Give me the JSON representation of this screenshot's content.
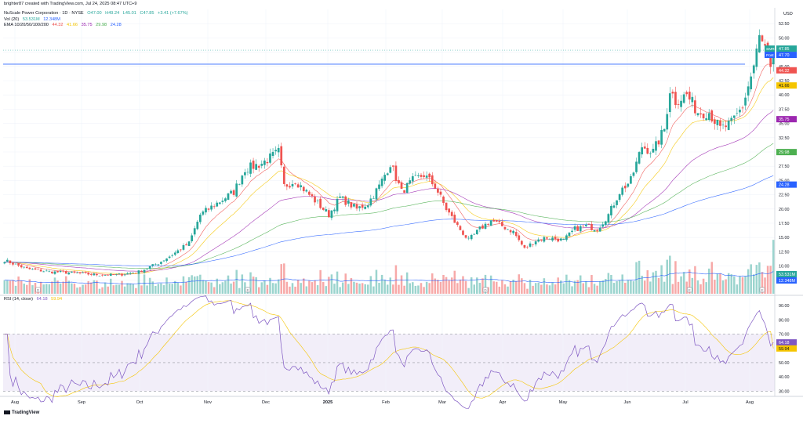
{
  "header": {
    "credit": "brighter87 created with TradingView.com, Jul 24, 2025 08:47 UTC+9",
    "symbol_line": "NuScale Power Corporation · 1D · NYSE",
    "ohlc": [
      "O47.00",
      "H49.24",
      "L45.01",
      "C47.85",
      "+3.41 (+7.67%)"
    ],
    "vol_label": "Vol (20)",
    "vol_values": [
      "53.531M",
      "12.348M"
    ],
    "ema_label": "EMA 10/20/50/100/200",
    "ema_values": [
      "44.32",
      "41.66",
      "35.75",
      "29.98",
      "24.28"
    ]
  },
  "currency": "USD",
  "brand": "TradingView",
  "rsi_header": {
    "label": "RSI (14, close)",
    "values": [
      "64.18",
      "59.94"
    ]
  },
  "colors": {
    "up": "#26a69a",
    "down": "#ef5350",
    "ema10": "#ef5350",
    "ema20": "#f5c500",
    "ema50": "#9c27b0",
    "ema100": "#4caf50",
    "ema200": "#2962ff",
    "rsi": "#7e57c2",
    "rsi_ma": "#f5c500"
  },
  "chart_data": {
    "type": "candlestick",
    "symbol": "SMR",
    "interval": "1D",
    "y_range": [
      5,
      55
    ],
    "price_ticks": [
      7.5,
      10,
      12.5,
      15,
      17.5,
      20,
      22.5,
      25,
      27.5,
      30,
      32.5,
      35,
      37.5,
      40,
      42.5,
      45,
      47.5,
      50,
      52.5
    ],
    "x_labels": [
      "Aug",
      "Sep",
      "Oct",
      "Nov",
      "Dec",
      "2025",
      "Feb",
      "Mar",
      "Apr",
      "May",
      "Jun",
      "Jul",
      "Aug"
    ],
    "close_anchors": [
      [
        0,
        11
      ],
      [
        8,
        9.5
      ],
      [
        16,
        9
      ],
      [
        24,
        8.8
      ],
      [
        32,
        8.5
      ],
      [
        40,
        8.4
      ],
      [
        48,
        9
      ],
      [
        55,
        10.5
      ],
      [
        60,
        12
      ],
      [
        66,
        14
      ],
      [
        70,
        19
      ],
      [
        76,
        21
      ],
      [
        82,
        23
      ],
      [
        86,
        27
      ],
      [
        92,
        28
      ],
      [
        98,
        30
      ],
      [
        100,
        24
      ],
      [
        104,
        25
      ],
      [
        108,
        23
      ],
      [
        112,
        21
      ],
      [
        116,
        19
      ],
      [
        120,
        22
      ],
      [
        126,
        20
      ],
      [
        130,
        21
      ],
      [
        134,
        24
      ],
      [
        138,
        28
      ],
      [
        142,
        23
      ],
      [
        146,
        25
      ],
      [
        150,
        26
      ],
      [
        154,
        24
      ],
      [
        158,
        20
      ],
      [
        162,
        17
      ],
      [
        166,
        14.5
      ],
      [
        170,
        16.5
      ],
      [
        174,
        18
      ],
      [
        178,
        17
      ],
      [
        182,
        16
      ],
      [
        186,
        13
      ],
      [
        190,
        14.5
      ],
      [
        194,
        15
      ],
      [
        200,
        14.5
      ],
      [
        204,
        16.5
      ],
      [
        208,
        17
      ],
      [
        212,
        16.5
      ],
      [
        216,
        19
      ],
      [
        220,
        23
      ],
      [
        224,
        25
      ],
      [
        228,
        31
      ],
      [
        232,
        30
      ],
      [
        236,
        34
      ],
      [
        238,
        41
      ],
      [
        240,
        39
      ],
      [
        244,
        40
      ],
      [
        248,
        37
      ],
      [
        252,
        37
      ],
      [
        256,
        34
      ],
      [
        260,
        35
      ],
      [
        264,
        38
      ],
      [
        268,
        45
      ],
      [
        270,
        50
      ],
      [
        272,
        48
      ],
      [
        274,
        44
      ],
      [
        275,
        47.85
      ]
    ],
    "markers": [
      {
        "x": 12,
        "label": "D"
      },
      {
        "x": 87,
        "label": "E"
      },
      {
        "x": 172,
        "label": "D"
      },
      {
        "x": 245,
        "label": "E"
      },
      {
        "x": 289,
        "label": "E"
      }
    ],
    "horizontal_line": 45.4,
    "price_labels": [
      {
        "tag": "SMR",
        "value": "47.85",
        "color": "#26a69a"
      },
      {
        "tag": "Post",
        "value": "47.70",
        "color": "#2962ff"
      },
      {
        "value": "44.32",
        "color": "#ef5350"
      },
      {
        "value": "41.66",
        "color": "#f5c500"
      },
      {
        "value": "35.75",
        "color": "#9c27b0"
      },
      {
        "value": "29.98",
        "color": "#4caf50"
      },
      {
        "value": "24.28",
        "color": "#2962ff"
      },
      {
        "value": "53.531M",
        "color": "#26a69a"
      },
      {
        "value": "12.348M",
        "color": "#2962ff"
      },
      {
        "value": "64.18",
        "color": "#7e57c2"
      },
      {
        "value": "59.94",
        "color": "#f5c500"
      }
    ],
    "rsi": {
      "y_range": [
        28,
        95
      ],
      "ticks": [
        30,
        40,
        50,
        60,
        70,
        80,
        90
      ],
      "overbought": 70,
      "oversold": 30,
      "midline": 50,
      "last": 64.18,
      "ma_last": 59.94
    },
    "volume_avg_last": 12.348,
    "volume_last": 53.531
  }
}
